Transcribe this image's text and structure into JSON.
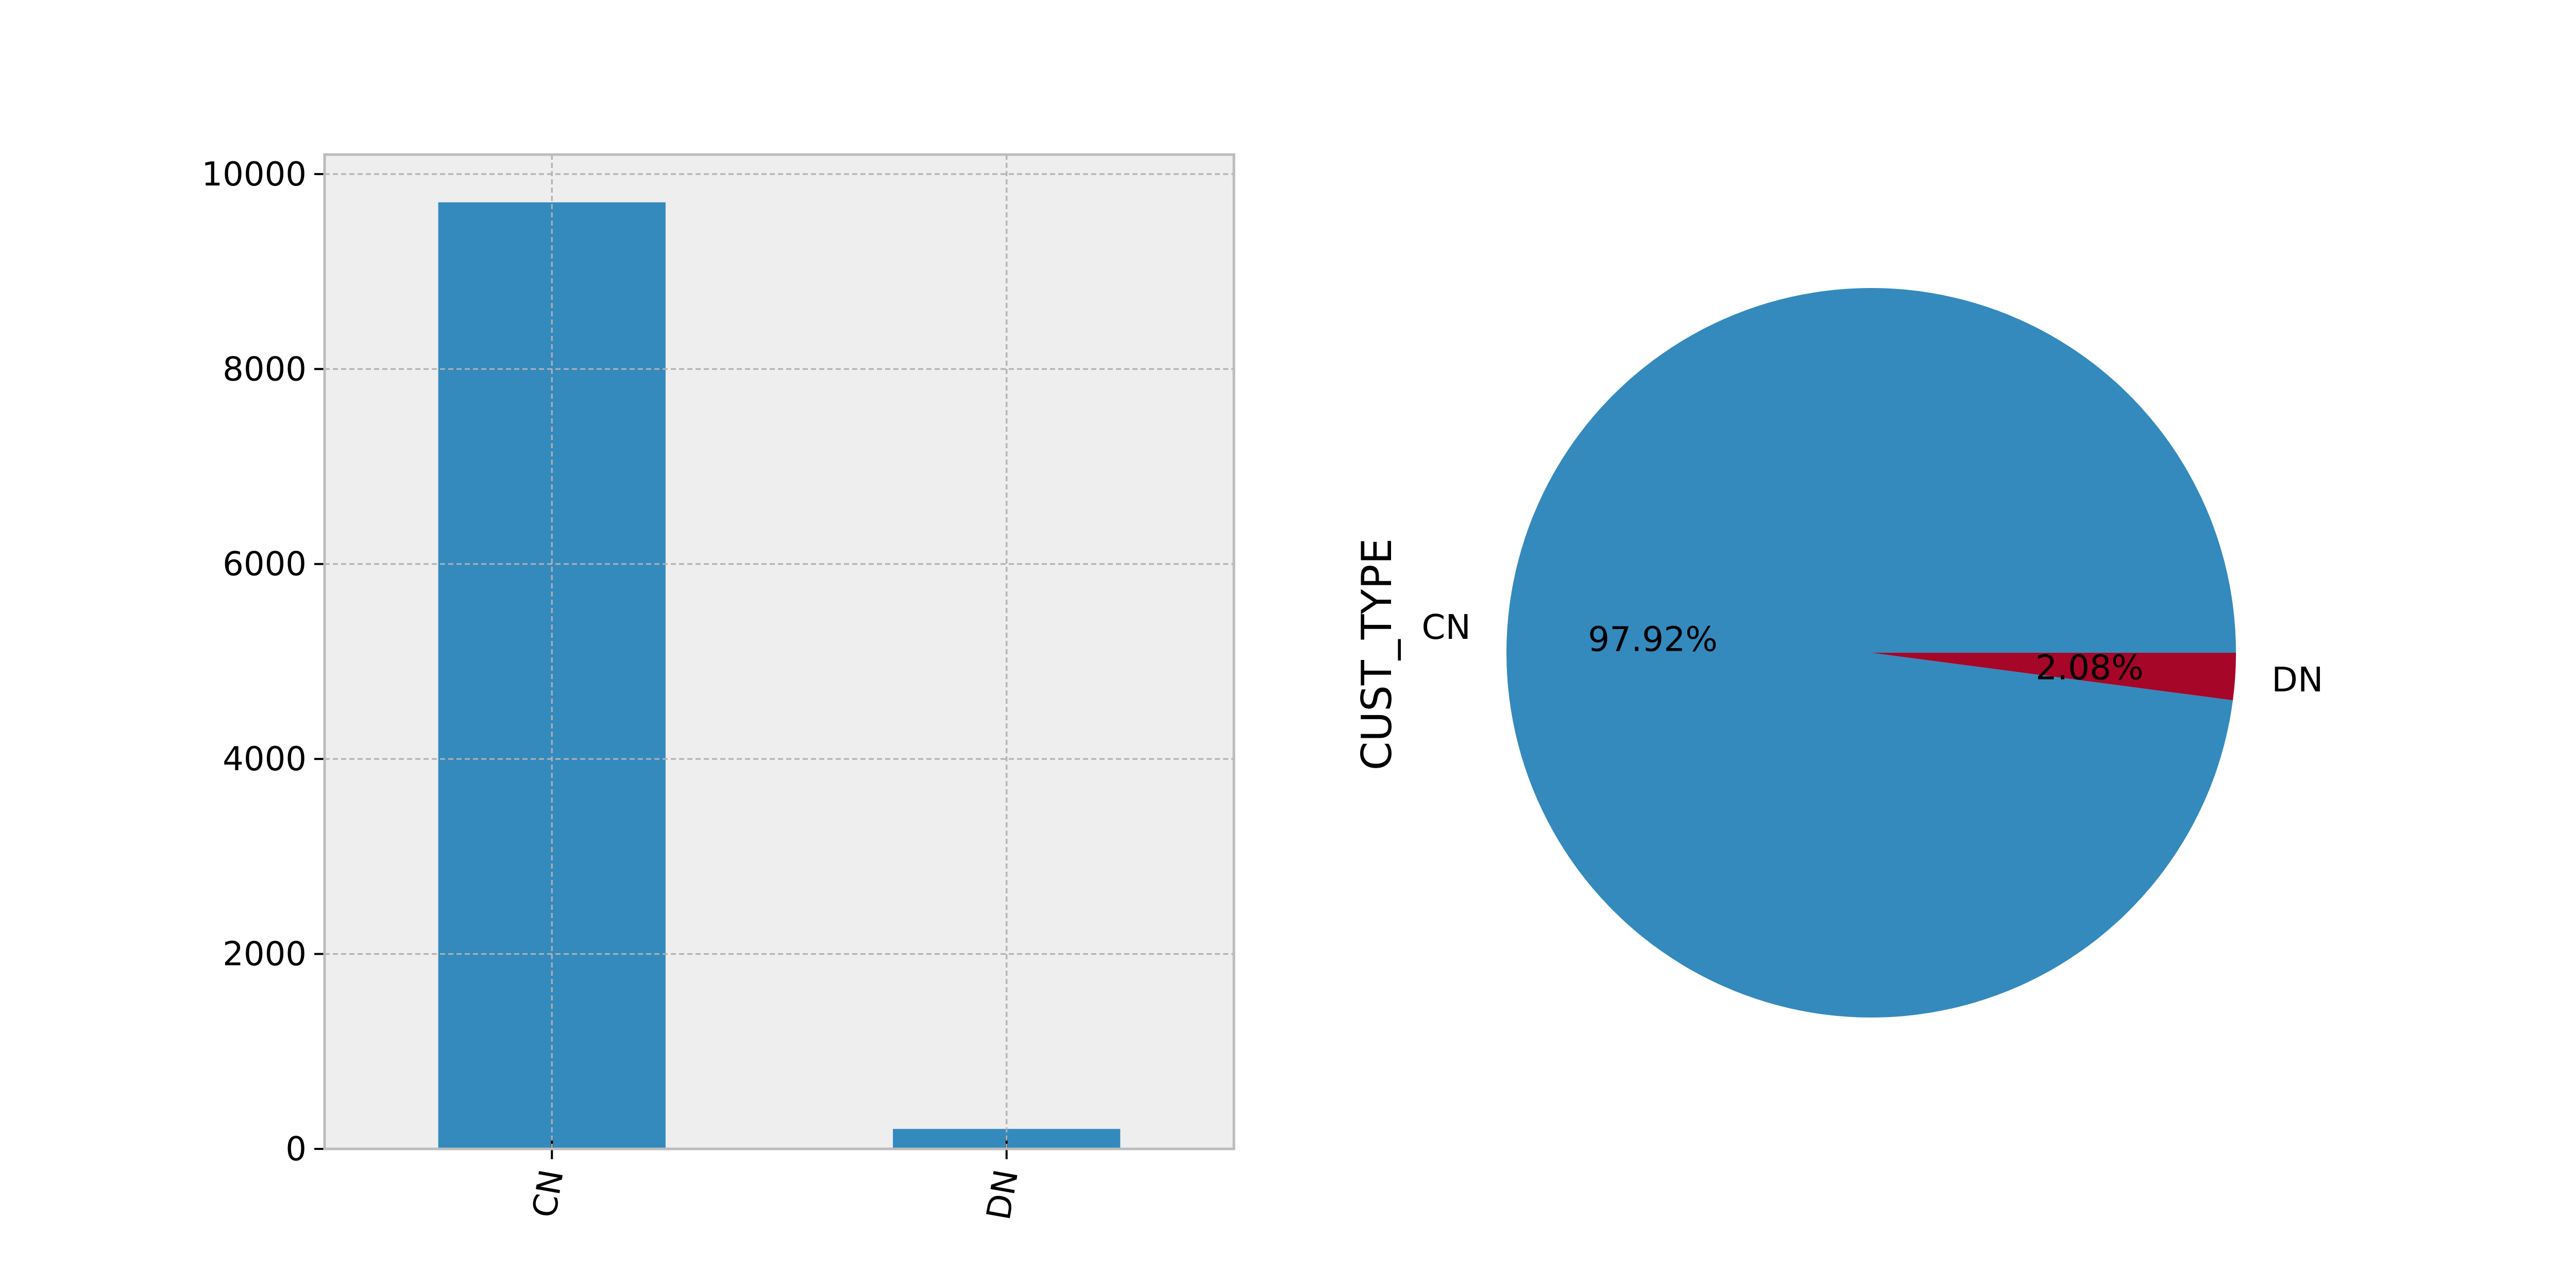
{
  "chart_data": [
    {
      "type": "bar",
      "categories": [
        "CN",
        "DN"
      ],
      "values": [
        9710,
        205
      ],
      "title": "",
      "xlabel": "",
      "ylabel": "",
      "ylim": [
        0,
        10200
      ],
      "yticks": [
        0,
        2000,
        4000,
        6000,
        8000,
        10000
      ],
      "ytick_labels": [
        "0",
        "2000",
        "4000",
        "6000",
        "8000",
        "10000"
      ],
      "grid": true,
      "color": "#348ABD"
    },
    {
      "type": "pie",
      "labels": [
        "CN",
        "DN"
      ],
      "values": [
        97.92,
        2.08
      ],
      "pct_labels": [
        "97.92%",
        "2.08%"
      ],
      "ylabel": "CUST_TYPE",
      "colors": [
        "#348ABD",
        "#A60628"
      ]
    }
  ]
}
